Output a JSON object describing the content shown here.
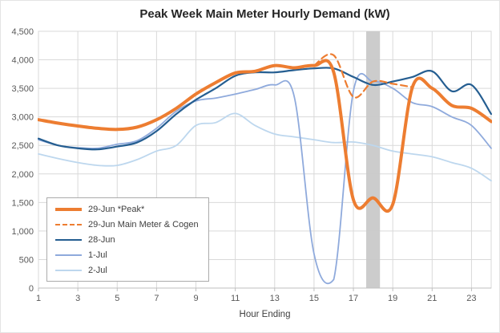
{
  "chart_data": {
    "type": "line",
    "title": "Peak Week Main Meter Hourly Demand (kW)",
    "xlabel": "Hour Ending",
    "ylabel": "",
    "x": [
      1,
      2,
      3,
      4,
      5,
      6,
      7,
      8,
      9,
      10,
      11,
      12,
      13,
      14,
      15,
      16,
      17,
      18,
      19,
      20,
      21,
      22,
      23,
      24
    ],
    "xticks": [
      1,
      3,
      5,
      7,
      9,
      11,
      13,
      15,
      17,
      19,
      21,
      23
    ],
    "ylim": [
      0,
      4500
    ],
    "ytick_step": 500,
    "grid": true,
    "legend_position": "inside-bottom-left",
    "highlight_band": {
      "x_start": 17.65,
      "x_end": 18.35,
      "color": "#c9c9c9"
    },
    "colors": {
      "gridline": "#d9d9d9",
      "axis_line": "#bfbfbf",
      "tick_text": "#595959",
      "title_text": "#262626"
    },
    "series": [
      {
        "name": "29-Jun *Peak*",
        "color": "#ED7D31",
        "width": 4,
        "style": "solid",
        "values": [
          2950,
          2890,
          2840,
          2800,
          2780,
          2820,
          2950,
          3150,
          3400,
          3600,
          3770,
          3800,
          3900,
          3860,
          3900,
          3780,
          1550,
          1580,
          1470,
          3520,
          3500,
          3200,
          3150,
          2920
        ]
      },
      {
        "name": "29-Jun Main Meter & Cogen",
        "color": "#ED7D31",
        "width": 2.2,
        "style": "dashed",
        "values": [
          null,
          null,
          null,
          null,
          null,
          null,
          null,
          null,
          null,
          null,
          null,
          null,
          null,
          null,
          3900,
          4080,
          3350,
          3620,
          3580,
          3520,
          null,
          null,
          null,
          null
        ]
      },
      {
        "name": "28-Jun",
        "color": "#255E91",
        "width": 2.2,
        "style": "solid",
        "values": [
          2620,
          2500,
          2450,
          2430,
          2480,
          2550,
          2750,
          3050,
          3300,
          3500,
          3720,
          3780,
          3780,
          3820,
          3850,
          3850,
          3700,
          3560,
          3620,
          3700,
          3800,
          3450,
          3560,
          3050
        ]
      },
      {
        "name": "1-Jul",
        "color": "#8FAADC",
        "width": 1.8,
        "style": "solid",
        "values": [
          2600,
          2500,
          2460,
          2450,
          2520,
          2580,
          2800,
          3100,
          3280,
          3330,
          3400,
          3480,
          3560,
          3350,
          600,
          150,
          3450,
          3620,
          3500,
          3250,
          3180,
          3000,
          2850,
          2450
        ]
      },
      {
        "name": "2-Jul",
        "color": "#BDD7EE",
        "width": 1.8,
        "style": "solid",
        "values": [
          2350,
          2270,
          2200,
          2150,
          2150,
          2250,
          2400,
          2500,
          2850,
          2900,
          3060,
          2850,
          2700,
          2650,
          2600,
          2550,
          2560,
          2500,
          2400,
          2350,
          2300,
          2200,
          2100,
          1880
        ]
      }
    ]
  }
}
